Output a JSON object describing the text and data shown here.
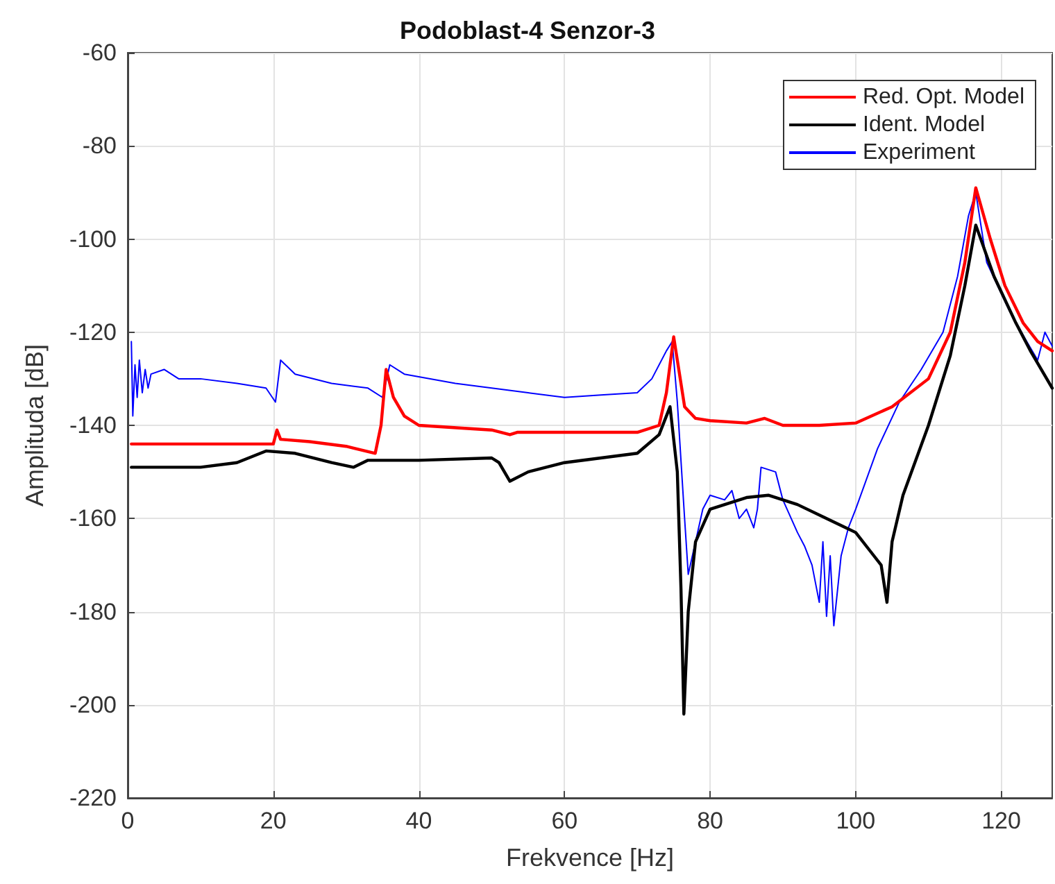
{
  "chart_data": {
    "type": "line",
    "title": "Podoblast-4 Senzor-3",
    "xlabel": "Frekvence [Hz]",
    "ylabel": "Amplituda [dB]",
    "xlim": [
      0,
      127
    ],
    "xticks": [
      0,
      20,
      40,
      60,
      80,
      100,
      120
    ],
    "ylim": [
      -220,
      -60
    ],
    "yticks": [
      -220,
      -200,
      -180,
      -160,
      -140,
      -120,
      -100,
      -80,
      -60
    ],
    "grid": true,
    "legend": "top right",
    "marker": "none",
    "line_style": "solid",
    "series": [
      {
        "name": "Red. Opt. Model",
        "color": "#ff0000",
        "x": [
          0.5,
          10,
          20,
          20.5,
          21,
          25,
          30,
          34,
          34.8,
          35.5,
          36.5,
          38,
          40,
          50,
          52.5,
          53.5,
          60,
          70,
          73,
          74,
          75,
          75.7,
          76.5,
          78,
          80,
          85,
          87.5,
          90,
          95,
          100,
          105,
          110,
          113,
          115,
          116.5,
          118.5,
          120.5,
          123,
          125,
          127
        ],
        "values": [
          -144,
          -144,
          -144,
          -141,
          -143,
          -143.5,
          -144.5,
          -146,
          -140,
          -128,
          -134,
          -138,
          -140,
          -141,
          -142,
          -141.5,
          -141.5,
          -141.5,
          -140,
          -133,
          -121,
          -128,
          -136,
          -138.5,
          -139,
          -139.5,
          -138.5,
          -140,
          -140,
          -139.5,
          -136,
          -130,
          -120,
          -105,
          -89,
          -100,
          -110,
          -118,
          -122,
          -124
        ]
      },
      {
        "name": "Ident. Model",
        "color": "#000000",
        "x": [
          0.5,
          10,
          15,
          19,
          23,
          28,
          31,
          33,
          40,
          50,
          51,
          52.5,
          55,
          60,
          70,
          73,
          74.5,
          75.5,
          76,
          76.4,
          77,
          78,
          80,
          85,
          88,
          92,
          96,
          100,
          102,
          103.5,
          104.3,
          105,
          106.5,
          110,
          113,
          115,
          116.5,
          119,
          122,
          124,
          127
        ],
        "values": [
          -149,
          -149,
          -148,
          -145.5,
          -146,
          -148,
          -149,
          -147.5,
          -147.5,
          -147,
          -148,
          -152,
          -150,
          -148,
          -146,
          -142,
          -136,
          -150,
          -175,
          -202,
          -180,
          -165,
          -158,
          -155.5,
          -155,
          -157,
          -160,
          -163,
          -167,
          -170,
          -178,
          -165,
          -155,
          -140,
          -125,
          -110,
          -97,
          -108,
          -118,
          -124,
          -132
        ]
      },
      {
        "name": "Experiment",
        "color": "#0000ff",
        "x": [
          0.5,
          0.7,
          1,
          1.3,
          1.6,
          2,
          2.4,
          2.8,
          3.2,
          5,
          7,
          10,
          15,
          19,
          20.3,
          21,
          23,
          28,
          33,
          35,
          36,
          38,
          45,
          55,
          60,
          65,
          70,
          72,
          74,
          74.8,
          75.5,
          76.5,
          77,
          78,
          79,
          80,
          82,
          83,
          84,
          85,
          86,
          86.5,
          87,
          89,
          90,
          92,
          93,
          94,
          95,
          95.5,
          96,
          96.5,
          97,
          98,
          99,
          100,
          103,
          106,
          109,
          112,
          114,
          115.5,
          116.5,
          118,
          121,
          123.5,
          125,
          126,
          127
        ],
        "values": [
          -122,
          -138,
          -127,
          -134,
          -126,
          -133,
          -128,
          -132,
          -129,
          -128,
          -130,
          -130,
          -131,
          -132,
          -135,
          -126,
          -129,
          -131,
          -132,
          -134,
          -127,
          -129,
          -131,
          -133,
          -134,
          -133.5,
          -133,
          -130,
          -124,
          -122,
          -135,
          -160,
          -172,
          -165,
          -158,
          -155,
          -156,
          -154,
          -160,
          -158,
          -162,
          -158,
          -149,
          -150,
          -156,
          -163,
          -166,
          -170,
          -178,
          -165,
          -181,
          -168,
          -183,
          -168,
          -162,
          -158,
          -145,
          -135,
          -128,
          -120,
          -108,
          -95,
          -90,
          -105,
          -115,
          -122,
          -126,
          -120,
          -123
        ]
      }
    ]
  }
}
